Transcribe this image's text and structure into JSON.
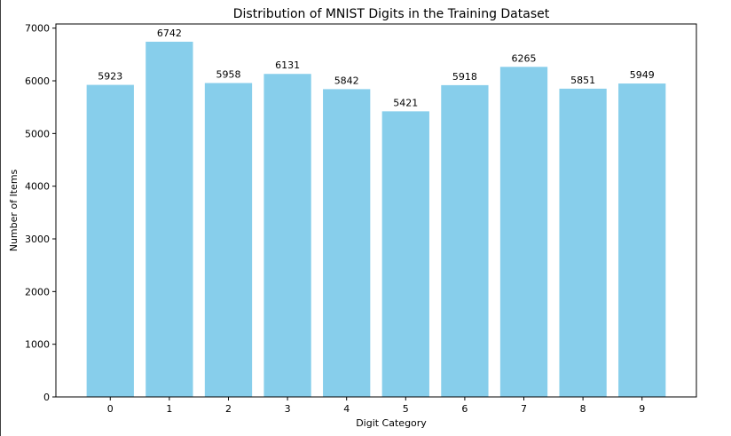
{
  "chart_data": {
    "type": "bar",
    "title": "Distribution of MNIST Digits in the Training Dataset",
    "xlabel": "Digit Category",
    "ylabel": "Number of Items",
    "categories": [
      "0",
      "1",
      "2",
      "3",
      "4",
      "5",
      "6",
      "7",
      "8",
      "9"
    ],
    "values": [
      5923,
      6742,
      5958,
      6131,
      5842,
      5421,
      5918,
      6265,
      5851,
      5949
    ],
    "data_labels": [
      "5923",
      "6742",
      "5958",
      "6131",
      "5842",
      "5421",
      "5918",
      "6265",
      "5851",
      "5949"
    ],
    "yticks": [
      0,
      1000,
      2000,
      3000,
      4000,
      5000,
      6000,
      7000
    ],
    "ytick_labels": [
      "0",
      "1000",
      "2000",
      "3000",
      "4000",
      "5000",
      "6000",
      "7000"
    ],
    "ylim": [
      0,
      7079
    ],
    "grid": false,
    "bar_color": "#87ceeb"
  }
}
